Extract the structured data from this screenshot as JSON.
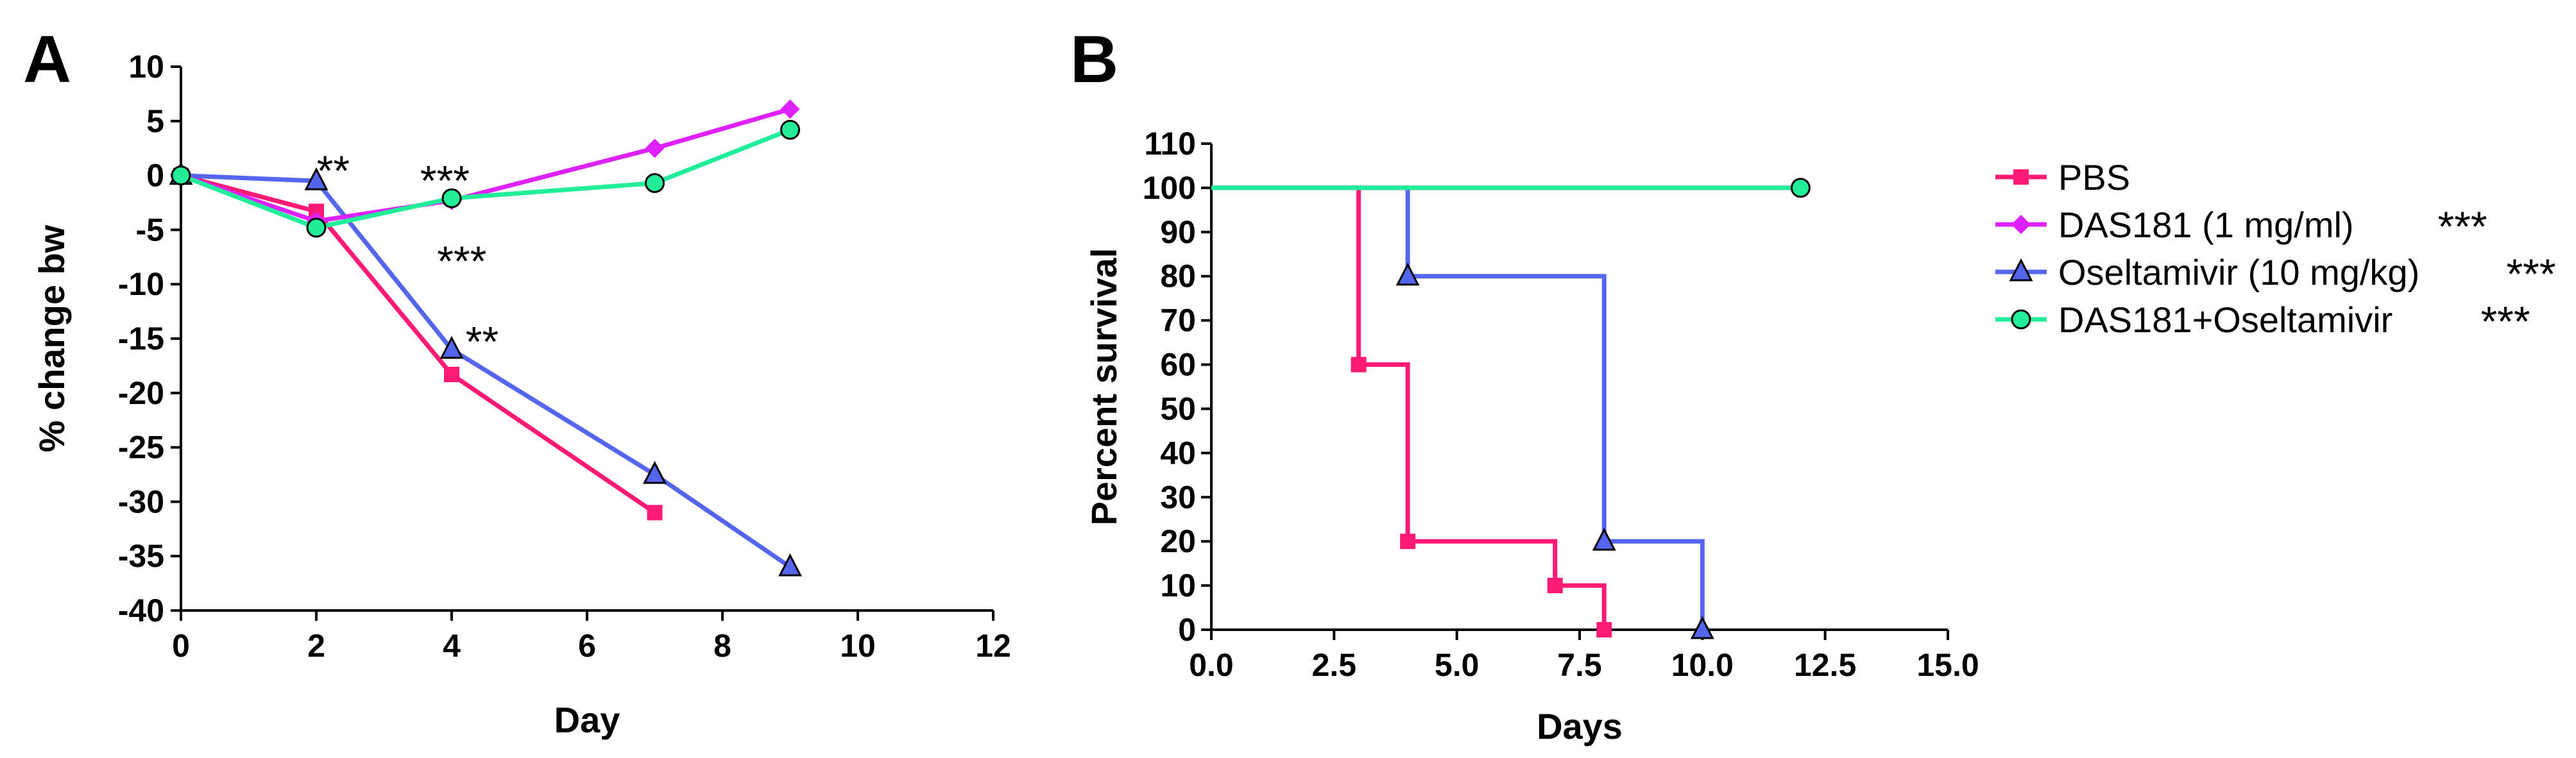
{
  "chart_data": [
    {
      "panel": "A",
      "type": "line",
      "xlabel": "Day",
      "ylabel": "% change bw",
      "xlim": [
        0,
        12
      ],
      "ylim": [
        -40,
        10
      ],
      "xticks": [
        0,
        2,
        4,
        6,
        8,
        10,
        12
      ],
      "yticks": [
        10,
        5,
        0,
        -5,
        -10,
        -15,
        -20,
        -25,
        -30,
        -35,
        -40
      ],
      "series": [
        {
          "name": "PBS",
          "color": "#ff1a75",
          "marker": "square",
          "x": [
            0,
            2,
            4,
            7
          ],
          "y": [
            0,
            -3.3,
            -18.3,
            -31
          ]
        },
        {
          "name": "Oseltamivir (10 mg/kg)",
          "color": "#5566ee",
          "marker": "triangle",
          "x": [
            0,
            2,
            4,
            7,
            9
          ],
          "y": [
            0,
            -0.5,
            -16,
            -27.5,
            -36
          ]
        },
        {
          "name": "DAS181 (1 mg/ml)",
          "color": "#dd22ff",
          "marker": "diamond",
          "x": [
            0,
            2,
            4,
            7,
            9
          ],
          "y": [
            0,
            -4.2,
            -2.3,
            2.5,
            6.1
          ]
        },
        {
          "name": "DAS181+Oseltamivir",
          "color": "#22ee99",
          "marker": "circle",
          "x": [
            0,
            2,
            4,
            7,
            9
          ],
          "y": [
            0,
            -4.8,
            -2.1,
            -0.7,
            4.2
          ]
        }
      ],
      "annotations": [
        {
          "text": "**",
          "x": 2.25,
          "y": 0.5
        },
        {
          "text": "***",
          "x": 3.9,
          "y": -0.4
        },
        {
          "text": "***",
          "x": 4.15,
          "y": -7.8
        },
        {
          "text": "**",
          "x": 4.45,
          "y": -15.2
        }
      ]
    },
    {
      "panel": "B",
      "type": "line",
      "subtype": "survival-step",
      "xlabel": "Days",
      "ylabel": "Percent survival",
      "xlim": [
        0,
        15
      ],
      "ylim": [
        0,
        110
      ],
      "xticks": [
        0,
        2.5,
        5,
        7.5,
        10,
        12.5,
        15
      ],
      "xtick_labels": [
        "0.0",
        "2.5",
        "5.0",
        "7.5",
        "10.0",
        "12.5",
        "15.0"
      ],
      "yticks": [
        110,
        100,
        90,
        80,
        70,
        60,
        50,
        40,
        30,
        20,
        10,
        0
      ],
      "series": [
        {
          "name": "PBS",
          "color": "#ff1a75",
          "marker": "square",
          "sig": "",
          "steps": [
            [
              0,
              100
            ],
            [
              3,
              100
            ],
            [
              3,
              60
            ],
            [
              4,
              60
            ],
            [
              4,
              20
            ],
            [
              7,
              20
            ],
            [
              7,
              10
            ],
            [
              8,
              10
            ],
            [
              8,
              0
            ]
          ],
          "points": [
            [
              3,
              60
            ],
            [
              4,
              20
            ],
            [
              7,
              10
            ],
            [
              8,
              0
            ]
          ]
        },
        {
          "name": "DAS181 (1 mg/ml)",
          "color": "#dd22ff",
          "marker": "diamond",
          "sig": "***",
          "steps": [
            [
              0,
              100
            ],
            [
              12,
              100
            ]
          ],
          "points": []
        },
        {
          "name": "Oseltamivir (10 mg/kg)",
          "color": "#5566ee",
          "marker": "triangle",
          "sig": "***",
          "steps": [
            [
              0,
              100
            ],
            [
              4,
              100
            ],
            [
              4,
              80
            ],
            [
              8,
              80
            ],
            [
              8,
              20
            ],
            [
              10,
              20
            ],
            [
              10,
              0
            ]
          ],
          "points": [
            [
              4,
              80
            ],
            [
              8,
              20
            ],
            [
              10,
              0
            ]
          ]
        },
        {
          "name": "DAS181+Oseltamivir",
          "color": "#22ee99",
          "marker": "circle",
          "sig": "***",
          "steps": [
            [
              0,
              100
            ],
            [
              12,
              100
            ]
          ],
          "points": [
            [
              12,
              100
            ]
          ]
        }
      ]
    }
  ]
}
